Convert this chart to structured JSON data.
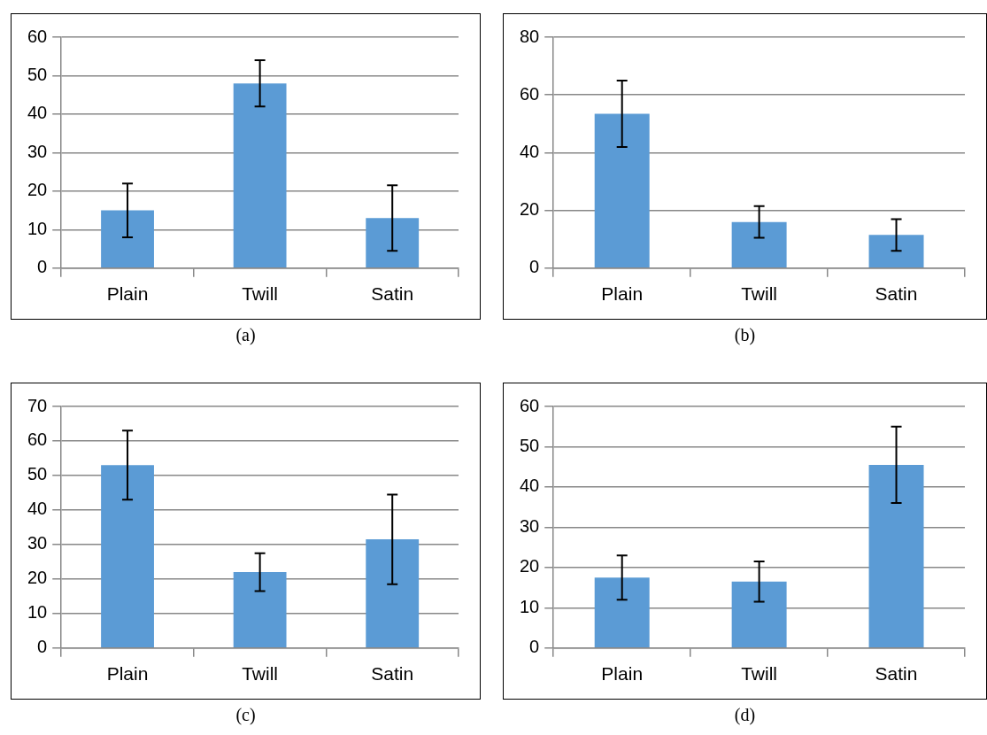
{
  "chart_data": [
    {
      "type": "bar",
      "categories": [
        "Plain",
        "Twill",
        "Satin"
      ],
      "values": [
        15,
        48,
        13
      ],
      "errors": [
        7,
        6,
        8.5
      ],
      "color": "#5b9bd5",
      "ylim": [
        0,
        60
      ],
      "yticks": [
        0,
        10,
        20,
        30,
        40,
        50,
        60
      ],
      "grid": "y",
      "annotations": [
        "(a)"
      ]
    },
    {
      "type": "bar",
      "categories": [
        "Plain",
        "Twill",
        "Satin"
      ],
      "values": [
        53.5,
        16,
        11.5
      ],
      "errors": [
        11.5,
        5.5,
        5.5
      ],
      "color": "#5b9bd5",
      "ylim": [
        0,
        80
      ],
      "yticks": [
        0,
        20,
        40,
        60,
        80
      ],
      "grid": "y",
      "annotations": [
        "(b)"
      ]
    },
    {
      "type": "bar",
      "categories": [
        "Plain",
        "Twill",
        "Satin"
      ],
      "values": [
        53,
        22,
        31.5
      ],
      "errors": [
        10,
        5.5,
        13
      ],
      "color": "#5b9bd5",
      "ylim": [
        0,
        70
      ],
      "yticks": [
        0,
        10,
        20,
        30,
        40,
        50,
        60,
        70
      ],
      "grid": "y",
      "annotations": [
        "(c)"
      ]
    },
    {
      "type": "bar",
      "categories": [
        "Plain",
        "Twill",
        "Satin"
      ],
      "values": [
        17.5,
        16.5,
        45.5
      ],
      "errors": [
        5.5,
        5,
        9.5
      ],
      "color": "#5b9bd5",
      "ylim": [
        0,
        60
      ],
      "yticks": [
        0,
        10,
        20,
        30,
        40,
        50,
        60
      ],
      "grid": "y",
      "annotations": [
        "(d)"
      ]
    }
  ]
}
